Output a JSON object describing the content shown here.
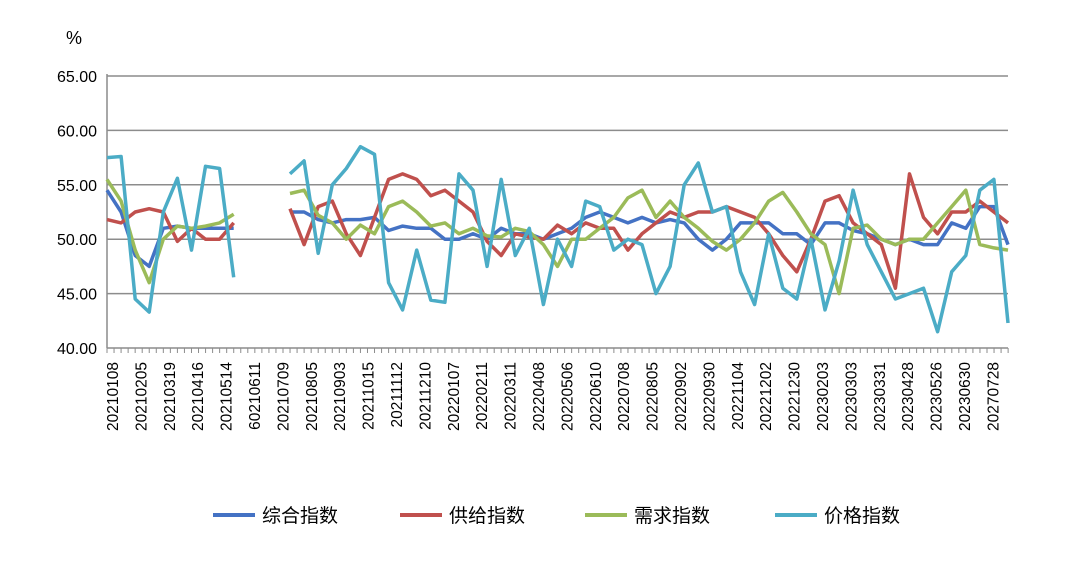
{
  "chart_data": {
    "type": "line",
    "ylabel": "%",
    "ylim": [
      40,
      65
    ],
    "yticks": [
      "40.00",
      "45.00",
      "50.00",
      "55.00",
      "60.00",
      "65.00"
    ],
    "ytick_values": [
      40,
      45,
      50,
      55,
      60,
      65
    ],
    "grid": true,
    "legend_position": "bottom",
    "x_tick_labels": [
      "20210108",
      "20210205",
      "20210319",
      "20210416",
      "20210514",
      "60210611",
      "20210709",
      "20210805",
      "20210903",
      "20211015",
      "20211112",
      "20211210",
      "20220107",
      "20220211",
      "20220311",
      "20220408",
      "20220506",
      "20220610",
      "20220708",
      "20220805",
      "20220902",
      "20220930",
      "20221104",
      "20221202",
      "20221230",
      "20230203",
      "20230303",
      "20230331",
      "20230428",
      "20230526",
      "20230630",
      "20270728"
    ],
    "series": [
      {
        "name": "综合指数",
        "color": "#4472C4",
        "values": [
          54.5,
          52.5,
          48.5,
          47.5,
          51,
          51.2,
          51,
          51,
          51,
          51,
          null,
          null,
          null,
          52.5,
          52.5,
          51.8,
          51.5,
          51.8,
          51.8,
          52,
          50.8,
          51.2,
          51,
          51,
          50,
          50,
          50.5,
          50,
          51,
          50.5,
          50.5,
          50,
          50.5,
          51,
          52,
          52.5,
          52,
          51.5,
          52,
          51.5,
          51.8,
          51.5,
          50,
          49,
          50,
          51.5,
          51.5,
          51.5,
          50.5,
          50.5,
          49.5,
          51.5,
          51.5,
          50.8,
          50.5,
          50,
          49.5,
          50,
          49.5,
          49.5,
          51.5,
          51,
          53,
          53,
          49.5
        ]
      },
      {
        "name": "供给指数",
        "color": "#C0504D",
        "values": [
          51.8,
          51.5,
          52.5,
          52.8,
          52.5,
          49.8,
          51,
          50,
          50,
          51.5,
          null,
          null,
          null,
          52.8,
          49.5,
          53,
          53.5,
          50.5,
          48.5,
          52,
          55.5,
          56,
          55.5,
          54,
          54.5,
          53.5,
          52.5,
          49.8,
          48.5,
          50.5,
          50.2,
          50,
          51.3,
          50.5,
          51.5,
          51,
          51,
          49,
          50.5,
          51.5,
          52.5,
          52,
          52.5,
          52.5,
          53,
          52.5,
          52,
          50.5,
          48.5,
          47,
          50,
          53.5,
          54,
          51.5,
          50.5,
          49.5,
          45.5,
          56,
          52,
          50.5,
          52.5,
          52.5,
          53.5,
          52.5,
          51.5
        ]
      },
      {
        "name": "需求指数",
        "color": "#9BBB59",
        "values": [
          55.5,
          53.5,
          49,
          46,
          50,
          51.2,
          51,
          51.2,
          51.5,
          52.3,
          null,
          null,
          null,
          54.2,
          54.5,
          52.2,
          51.5,
          50,
          51.3,
          50.5,
          53,
          53.5,
          52.5,
          51.2,
          51.5,
          50.5,
          51,
          50.3,
          50.2,
          51,
          50.7,
          49.5,
          47.5,
          50,
          50,
          51,
          52,
          53.8,
          54.5,
          52,
          53.5,
          52,
          51,
          49.8,
          49,
          50,
          51.5,
          53.5,
          54.3,
          52.5,
          50.5,
          49.5,
          45,
          51,
          51.3,
          50,
          49.5,
          50,
          50,
          51.5,
          53,
          54.5,
          49.5,
          49.2,
          49
        ]
      },
      {
        "name": "价格指数",
        "color": "#4BACC6",
        "values": [
          57.5,
          57.6,
          44.5,
          43.3,
          52.5,
          55.6,
          49,
          56.7,
          56.5,
          46.5,
          null,
          null,
          null,
          56,
          57.2,
          48.7,
          55,
          56.5,
          58.5,
          57.8,
          46,
          43.5,
          49,
          44.4,
          44.2,
          56,
          54.5,
          47.5,
          55.5,
          48.5,
          51,
          44,
          50,
          47.5,
          53.5,
          53,
          49,
          50,
          49.5,
          45,
          47.5,
          55,
          57,
          52.5,
          53,
          47,
          44,
          50.5,
          45.5,
          44.5,
          50,
          43.5,
          48,
          54.5,
          49.5,
          47,
          44.5,
          45,
          45.5,
          41.5,
          47,
          48.5,
          54.5,
          55.5,
          42.3
        ]
      }
    ]
  }
}
